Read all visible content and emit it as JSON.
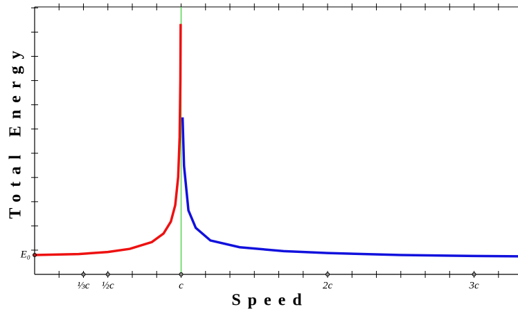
{
  "chart_data": {
    "type": "line",
    "xlabel": "Speed",
    "ylabel": "Total Energy",
    "xlim": [
      0,
      3.3
    ],
    "ylim": [
      0,
      13.8
    ],
    "xticks": [
      {
        "value": 0.3333,
        "label": "⅓c"
      },
      {
        "value": 0.5,
        "label": "½c"
      },
      {
        "value": 1,
        "label": "c"
      },
      {
        "value": 2,
        "label": "2c"
      },
      {
        "value": 3,
        "label": "3c"
      }
    ],
    "yticks": [
      {
        "value": 1,
        "label": "E₀"
      }
    ],
    "xminorticks": [
      0.1667,
      0.3333,
      0.5,
      0.6667,
      0.8333,
      1,
      1.1667,
      1.3333,
      1.5,
      1.6667,
      1.8333,
      2,
      2.1667,
      2.3333,
      2.5,
      2.6667,
      2.8333,
      3,
      3.1667
    ],
    "yminorticks": [
      1.25,
      2.5,
      3.75,
      5,
      6.25,
      7.5,
      8.75,
      10,
      11.25,
      12.5,
      13.75
    ],
    "vline": {
      "x": 1,
      "color": "#33cc33"
    },
    "series": [
      {
        "color": "#ee1111",
        "x": [
          0,
          0.3,
          0.5,
          0.65,
          0.8,
          0.88,
          0.93,
          0.96,
          0.98,
          0.99,
          0.995,
          0.997
        ],
        "values": [
          1,
          1.048,
          1.155,
          1.316,
          1.667,
          2.105,
          2.721,
          3.571,
          5.025,
          7.089,
          10.01,
          12.92
        ]
      },
      {
        "color": "#1111dd",
        "x": [
          1.01,
          1.02,
          1.05,
          1.1,
          1.2,
          1.4,
          1.7,
          2,
          2.5,
          3,
          3.3
        ],
        "values": [
          8.1,
          5.6,
          3.3,
          2.4,
          1.75,
          1.4,
          1.2,
          1.1,
          1.0,
          0.95,
          0.93
        ]
      }
    ]
  }
}
